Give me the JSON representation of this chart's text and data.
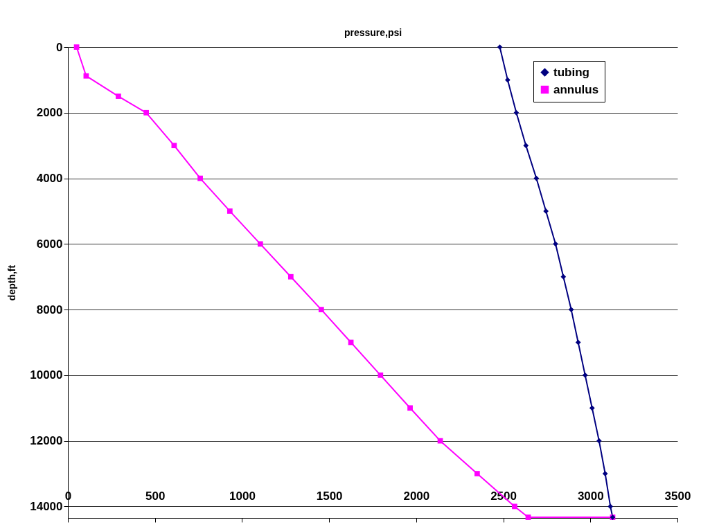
{
  "chart_data": {
    "type": "line",
    "xlabel": "pressure,psi",
    "ylabel": "depth,ft",
    "xlim": [
      0,
      3500
    ],
    "xticks": [
      0,
      500,
      1000,
      1500,
      2000,
      2500,
      3000,
      3500
    ],
    "ylim": [
      14350,
      0
    ],
    "yticks": [
      0,
      2000,
      4000,
      6000,
      8000,
      10000,
      12000,
      14000
    ],
    "grid": "y",
    "legend": "top right",
    "series": [
      {
        "name": "tubing",
        "color": "#000080",
        "marker": "diamond",
        "x": [
          2480,
          2525,
          2575,
          2630,
          2690,
          2745,
          2800,
          2845,
          2890,
          2930,
          2970,
          3010,
          3050,
          3085,
          3115,
          3128
        ],
        "values": [
          0,
          1000,
          2000,
          3000,
          4000,
          5000,
          6000,
          7000,
          8000,
          9000,
          10000,
          11000,
          12000,
          13000,
          14000,
          14330
        ]
      },
      {
        "name": "annulus",
        "color": "#ff00ff",
        "marker": "square",
        "x": [
          50,
          105,
          290,
          450,
          610,
          760,
          930,
          1105,
          1280,
          1455,
          1625,
          1795,
          1965,
          2138,
          2350,
          2565,
          2643,
          3128
        ],
        "values": [
          0,
          880,
          1500,
          2000,
          3000,
          4000,
          5000,
          6000,
          7000,
          8000,
          9000,
          10000,
          11000,
          12000,
          13000,
          14000,
          14330,
          14330
        ]
      }
    ]
  }
}
